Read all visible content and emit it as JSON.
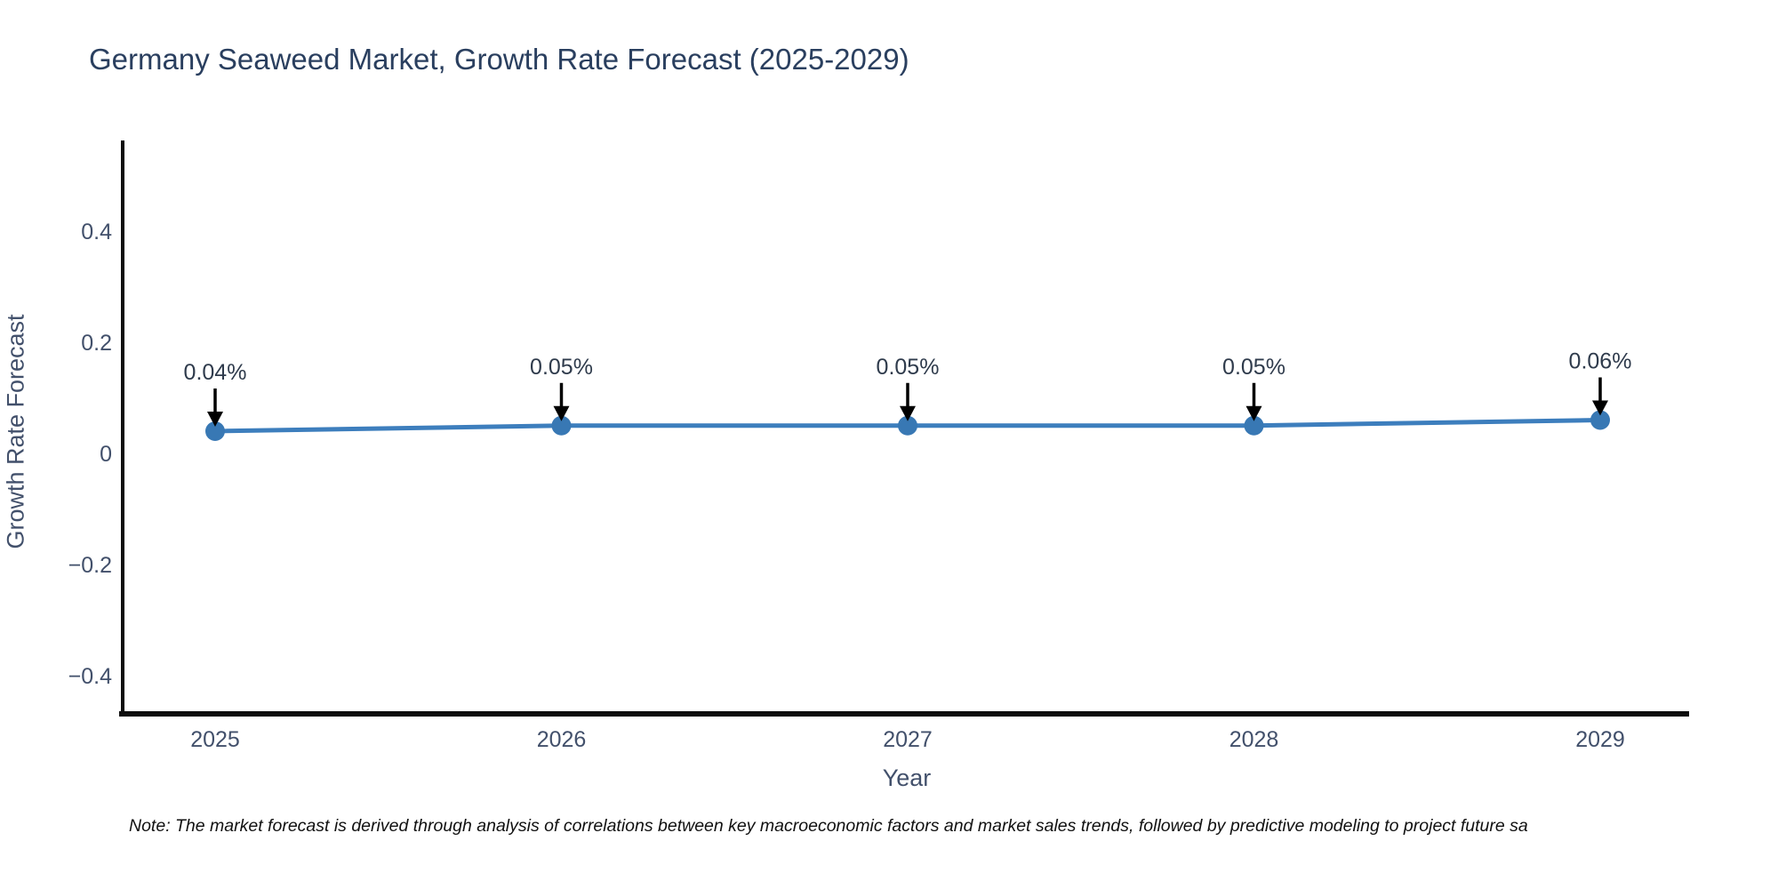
{
  "chart_data": {
    "type": "line",
    "title": "Germany Seaweed Market, Growth Rate Forecast (2025-2029)",
    "xlabel": "Year",
    "ylabel": "Growth Rate Forecast",
    "categories": [
      "2025",
      "2026",
      "2027",
      "2028",
      "2029"
    ],
    "series": [
      {
        "name": "Growth Rate Forecast",
        "values": [
          0.04,
          0.05,
          0.05,
          0.05,
          0.06
        ]
      }
    ],
    "point_labels": [
      "0.04%",
      "0.05%",
      "0.05%",
      "0.05%",
      "0.06%"
    ],
    "y_tick_labels": [
      "0.4",
      "0.2",
      "0",
      "−0.2",
      "−0.4"
    ],
    "y_tick_values": [
      0.4,
      0.2,
      0,
      -0.2,
      -0.4
    ],
    "ylim": [
      -0.47,
      0.56
    ],
    "grid": "off",
    "legend": "none",
    "colors": {
      "line": "#3d7ebd",
      "marker": "#3878b4",
      "axis": "#0d0d0d",
      "arrow": "#000000",
      "annotation_text": "#2f3b4c",
      "tick_text": "#42506b",
      "title_text": "#2a3f5f"
    },
    "note": "Note: The market forecast is derived through analysis of correlations between key macroeconomic factors and market sales trends, followed by predictive modeling to project future sa"
  }
}
